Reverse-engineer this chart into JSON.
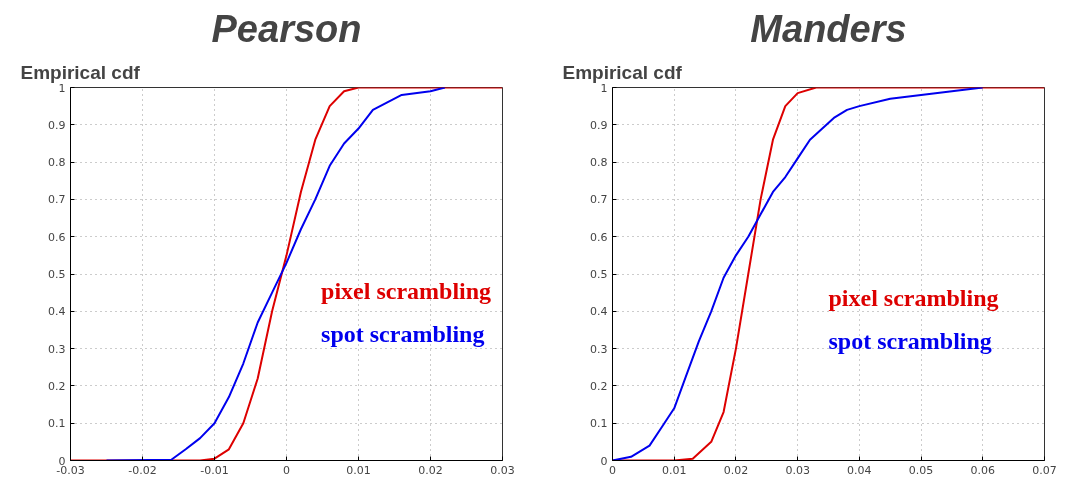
{
  "chart_data": [
    {
      "type": "line",
      "title": "Pearson",
      "subtitle": "Empirical cdf",
      "xlim": [
        -0.03,
        0.03
      ],
      "xticks": [
        -0.03,
        -0.02,
        -0.01,
        0,
        0.01,
        0.02,
        0.03
      ],
      "ylim": [
        0,
        1
      ],
      "yticks": [
        0,
        0.1,
        0.2,
        0.3,
        0.4,
        0.5,
        0.6,
        0.7,
        0.8,
        0.9,
        1
      ],
      "grid": true,
      "line_style": "solid",
      "marker": "none",
      "series": [
        {
          "name": "pixel scrambling",
          "color": "#dd0000",
          "x": [
            -0.03,
            -0.012,
            -0.01,
            -0.008,
            -0.006,
            -0.004,
            -0.002,
            0,
            0.002,
            0.004,
            0.006,
            0.008,
            0.01,
            0.03
          ],
          "values": [
            0,
            0,
            0.005,
            0.03,
            0.1,
            0.22,
            0.4,
            0.55,
            0.72,
            0.86,
            0.95,
            0.99,
            1,
            1
          ]
        },
        {
          "name": "spot scrambling",
          "color": "#0000ee",
          "x": [
            -0.025,
            -0.016,
            -0.014,
            -0.012,
            -0.01,
            -0.008,
            -0.006,
            -0.004,
            -0.002,
            0,
            0.002,
            0.004,
            0.006,
            0.008,
            0.01,
            0.012,
            0.014,
            0.016,
            0.02,
            0.022
          ],
          "values": [
            0,
            0.002,
            0.03,
            0.06,
            0.1,
            0.17,
            0.26,
            0.37,
            0.45,
            0.53,
            0.62,
            0.7,
            0.79,
            0.85,
            0.89,
            0.94,
            0.96,
            0.98,
            0.99,
            1
          ]
        }
      ]
    },
    {
      "type": "line",
      "title": "Manders",
      "subtitle": "Empirical cdf",
      "xlim": [
        0,
        0.07
      ],
      "xticks": [
        0,
        0.01,
        0.02,
        0.03,
        0.04,
        0.05,
        0.06,
        0.07
      ],
      "ylim": [
        0,
        1
      ],
      "yticks": [
        0,
        0.1,
        0.2,
        0.3,
        0.4,
        0.5,
        0.6,
        0.7,
        0.8,
        0.9,
        1
      ],
      "grid": true,
      "line_style": "solid",
      "marker": "none",
      "series": [
        {
          "name": "pixel scrambling",
          "color": "#dd0000",
          "x": [
            0,
            0.01,
            0.013,
            0.016,
            0.018,
            0.02,
            0.022,
            0.024,
            0.026,
            0.028,
            0.03,
            0.033,
            0.07
          ],
          "values": [
            0,
            0,
            0.005,
            0.05,
            0.13,
            0.3,
            0.5,
            0.7,
            0.86,
            0.95,
            0.985,
            1,
            1
          ]
        },
        {
          "name": "spot scrambling",
          "color": "#0000ee",
          "x": [
            0,
            0.003,
            0.006,
            0.008,
            0.01,
            0.012,
            0.014,
            0.016,
            0.018,
            0.02,
            0.022,
            0.024,
            0.026,
            0.028,
            0.03,
            0.032,
            0.034,
            0.036,
            0.038,
            0.04,
            0.045,
            0.05,
            0.055,
            0.06
          ],
          "values": [
            0,
            0.01,
            0.04,
            0.09,
            0.14,
            0.23,
            0.32,
            0.4,
            0.49,
            0.55,
            0.6,
            0.66,
            0.72,
            0.76,
            0.81,
            0.86,
            0.89,
            0.92,
            0.94,
            0.95,
            0.97,
            0.98,
            0.99,
            1
          ]
        }
      ]
    }
  ]
}
